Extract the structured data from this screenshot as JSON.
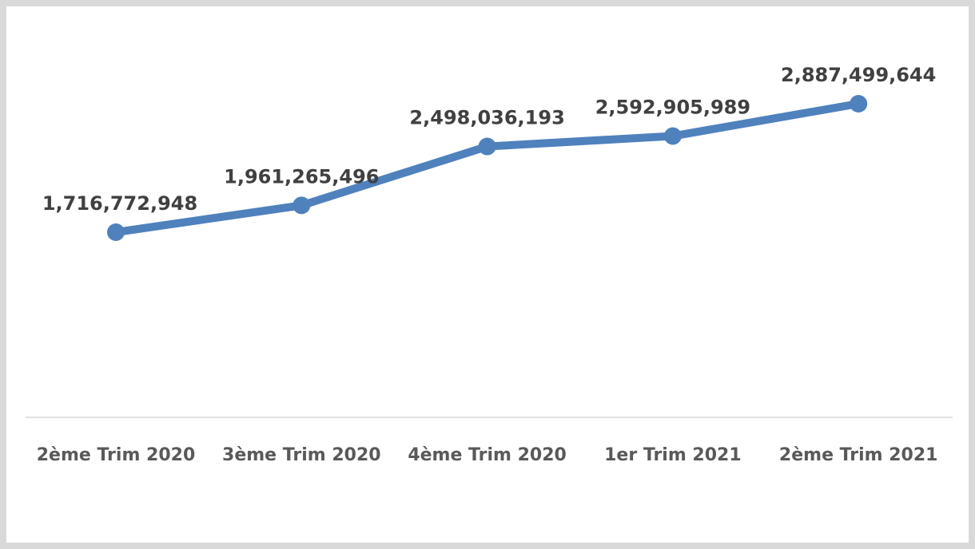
{
  "chart_data": {
    "type": "line",
    "categories": [
      "2ème Trim 2020",
      "3ème Trim 2020",
      "4ème Trim 2020",
      "1er Trim 2021",
      "2ème Trim 2021"
    ],
    "series": [
      {
        "values": [
          1716772948,
          1961265496,
          2498036193,
          2592905989,
          2887499644
        ],
        "data_labels": [
          "1,716,772,948",
          "1,961,265,496",
          "2,498,036,193",
          "2,592,905,989",
          "2,887,499,644"
        ]
      }
    ],
    "title": "",
    "xlabel": "",
    "ylabel": "",
    "ylim": [
      0,
      3000000000
    ],
    "grid": false,
    "legend": "none",
    "line_color": "#4f81bd",
    "axis_color": "#d9d9d9"
  }
}
